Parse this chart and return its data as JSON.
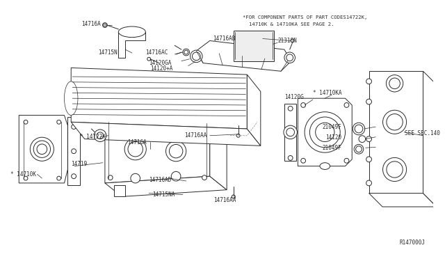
{
  "background_color": "#ffffff",
  "line_color": "#2a2a2a",
  "label_color": "#2a2a2a",
  "note_line1": "*FOR COMPONENT PARTS OF PART CODES14722K,",
  "note_line2": "14710K & 14710KA SEE PAGE 2.",
  "ref_number": "R147000J",
  "figsize": [
    6.4,
    3.72
  ],
  "dpi": 100
}
